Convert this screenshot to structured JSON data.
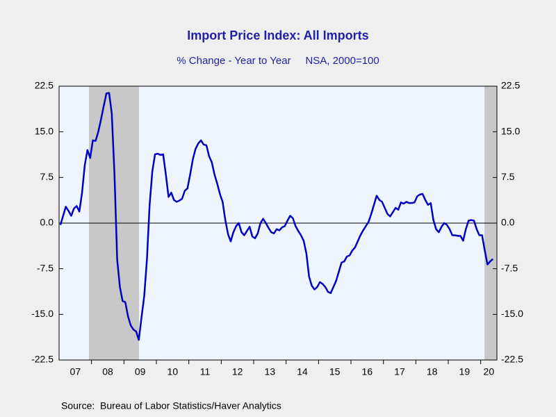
{
  "chart_data": {
    "type": "line",
    "title": "Import Price Index: All Imports",
    "subtitle": "% Change - Year to Year     NSA, 2000=100",
    "source": "Source:  Bureau of Labor Statistics/Haver Analytics",
    "categories": [
      "07",
      "08",
      "09",
      "10",
      "11",
      "12",
      "13",
      "14",
      "15",
      "16",
      "17",
      "18",
      "19",
      "20"
    ],
    "series": [
      {
        "name": "Import Price Index: All Imports",
        "color": "#0000c0",
        "values": [
          [
            -0.3,
            1.2,
            2.7,
            2.0,
            1.2,
            2.4,
            2.8,
            1.9,
            5.0,
            9.5,
            12.0,
            10.7
          ],
          [
            13.6,
            13.5,
            15.0,
            17.0,
            19.2,
            21.3,
            21.4,
            18.0,
            8.0,
            -6.0,
            -10.5,
            -12.8
          ],
          [
            -13.0,
            -15.3,
            -16.8,
            -17.5,
            -17.8,
            -19.2,
            -15.5,
            -12.0,
            -6.0,
            3.0,
            8.5,
            11.3
          ],
          [
            11.4,
            11.2,
            11.3,
            8.0,
            4.3,
            5.0,
            3.8,
            3.5,
            3.7,
            4.0,
            5.3,
            5.7
          ],
          [
            8.0,
            10.5,
            12.2,
            13.1,
            13.6,
            12.9,
            12.8,
            11.0,
            10.0,
            8.0,
            6.5,
            4.8
          ],
          [
            3.5,
            0.5,
            -1.8,
            -3.0,
            -1.5,
            -0.5,
            0.0,
            -1.5,
            -2.0,
            -1.3,
            -0.6,
            -2.2
          ],
          [
            -2.5,
            -1.7,
            0.0,
            0.7,
            0.0,
            -0.8,
            -1.5,
            -1.7,
            -1.0,
            -1.2,
            -0.7,
            -0.5
          ],
          [
            0.4,
            1.2,
            0.8,
            -0.5,
            -1.3,
            -2.0,
            -2.9,
            -5.0,
            -8.8,
            -10.3,
            -10.9,
            -10.5
          ],
          [
            -9.7,
            -10.0,
            -10.5,
            -11.3,
            -11.5,
            -10.5,
            -9.5,
            -8.0,
            -6.5,
            -6.3,
            -5.5,
            -5.3
          ],
          [
            -4.5,
            -4.0,
            -3.0,
            -2.0,
            -1.2,
            -0.5,
            0.2,
            1.5,
            3.0,
            4.5,
            3.8,
            3.5
          ],
          [
            2.5,
            1.5,
            1.1,
            1.8,
            2.5,
            2.2,
            3.4,
            3.2,
            3.5,
            3.3,
            3.3,
            3.4
          ],
          [
            4.4,
            4.7,
            4.8,
            3.8,
            3.0,
            3.3,
            0.5,
            -1.0,
            -1.5,
            -0.6,
            0.0,
            -0.3
          ],
          [
            -1.0,
            -2.0,
            -2.0,
            -2.1,
            -2.1,
            -2.9,
            -1.0,
            0.4,
            0.5,
            0.4,
            -1.0,
            -2.0
          ],
          [
            -2.0,
            -4.5,
            -6.8,
            -6.3,
            -5.9
          ]
        ]
      }
    ],
    "ylim": [
      -22.5,
      22.5
    ],
    "yticks": [
      22.5,
      {
        "value": 15,
        "label": "15.0"
      },
      -7.5,
      {
        "value": 0,
        "label": "0.0"
      },
      7.5,
      {
        "value": -15,
        "label": "-15.0"
      },
      -22.5
    ],
    "zero_line": true
  }
}
